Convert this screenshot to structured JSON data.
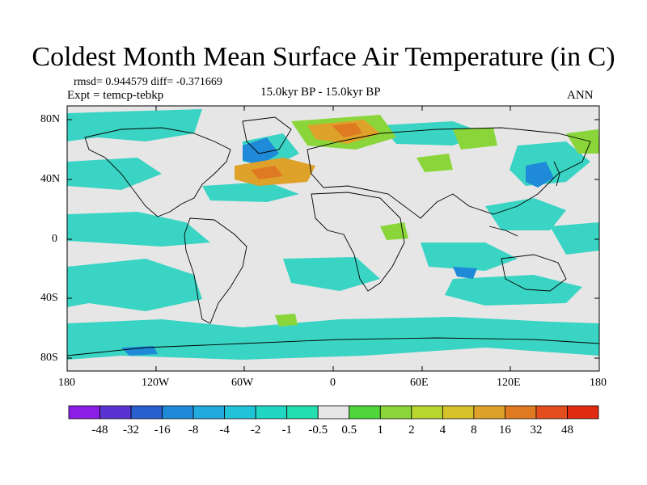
{
  "title": "Coldest Month Mean Surface Air Temperature (in C)",
  "stats": "rmsd= 0.944579 diff= -0.371669",
  "experiment": "Expt = temcp-tebkp",
  "period": "15.0kyr BP - 15.0kyr BP",
  "season": "ANN",
  "lat_labels": [
    "80N",
    "40N",
    "0",
    "40S",
    "80S"
  ],
  "lon_labels": [
    "180",
    "120W",
    "60W",
    "0",
    "60E",
    "120E",
    "180"
  ],
  "colorbar": {
    "labels": [
      "-48",
      "-32",
      "-16",
      "-8",
      "-4",
      "-2",
      "-1",
      "-0.5",
      "0.5",
      "1",
      "2",
      "4",
      "8",
      "16",
      "32",
      "48"
    ],
    "colors": [
      "#8a1ee6",
      "#5a32d2",
      "#2a5fd0",
      "#1f8ad8",
      "#22a9dd",
      "#21c3d8",
      "#22d6c4",
      "#23dfb0",
      "#e6e6e6",
      "#4ed63a",
      "#8ad63a",
      "#b8d630",
      "#d6c22a",
      "#dea22a",
      "#e07a22",
      "#e24e1e",
      "#e02a12"
    ]
  },
  "colors": {
    "land_neutral": "#e6e6e6",
    "ocean_neg": "#3ad4c4",
    "coast": "#000000"
  }
}
